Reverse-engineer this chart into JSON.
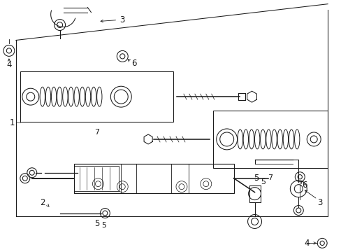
{
  "bg_color": "#ffffff",
  "line_color": "#1a1a1a",
  "figsize": [
    4.89,
    3.6
  ],
  "dpi": 100,
  "lw": 0.75
}
